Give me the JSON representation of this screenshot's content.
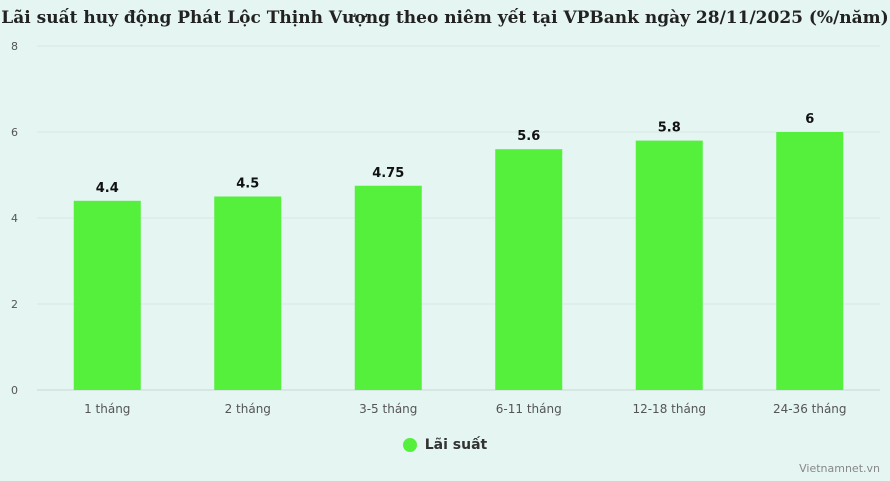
{
  "title": "Lãi suất huy động Phát Lộc Thịnh Vượng theo niêm yết tại VPBank ngày 28/11/2025 (%/năm)",
  "watermark": "Vietnamnet.vn",
  "colors": {
    "bar": "#54f03c",
    "background": "#e4f5f2",
    "grid": "#d6e8e4",
    "axis_text": "#555555"
  },
  "chart_data": {
    "type": "bar",
    "title": "Lãi suất huy động Phát Lộc Thịnh Vượng theo niêm yết tại VPBank ngày 28/11/2025 (%/năm)",
    "categories": [
      "1 tháng",
      "2 tháng",
      "3-5 tháng",
      "6-11 tháng",
      "12-18 tháng",
      "24-36 tháng"
    ],
    "series": [
      {
        "name": "Lãi suất",
        "values": [
          4.4,
          4.5,
          4.75,
          5.6,
          5.8,
          6
        ]
      }
    ],
    "data_labels": [
      "4.4",
      "4.5",
      "4.75",
      "5.6",
      "5.8",
      "6"
    ],
    "xlabel": "",
    "ylabel": "",
    "ylim": [
      0,
      8
    ],
    "yticks": [
      0,
      2,
      4,
      6,
      8
    ],
    "grid": true,
    "legend_position": "bottom"
  }
}
